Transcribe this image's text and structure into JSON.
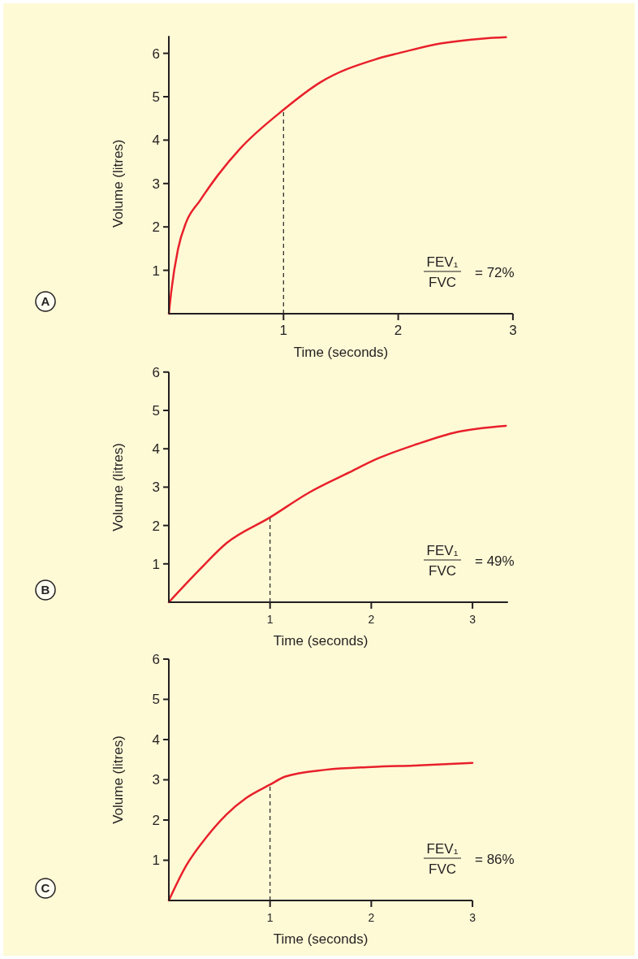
{
  "chart_data": [
    {
      "type": "line",
      "xlabel": "Time (seconds)",
      "ylabel": "Volume (litres)",
      "xlim": [
        0,
        3
      ],
      "ylim": [
        0,
        6.4
      ],
      "xticks": [
        1,
        2,
        3
      ],
      "yticks": [
        1,
        2,
        3,
        4,
        5,
        6
      ],
      "grid": false,
      "line_style": "solid",
      "series": [
        {
          "color": "#e8202a",
          "x": [
            0,
            0.02,
            0.08,
            0.15,
            0.27,
            0.43,
            0.62,
            1.0,
            1.32,
            1.8,
            2.0,
            2.38,
            2.74,
            2.94
          ],
          "values": [
            0,
            0.49,
            1.49,
            2.1,
            2.6,
            3.2,
            3.8,
            4.7,
            5.33,
            5.86,
            6.0,
            6.23,
            6.34,
            6.37
          ]
        }
      ],
      "ref_lines": [
        {
          "axis": "x",
          "value": 1,
          "line_style": "dashed",
          "color": "#231f20"
        }
      ],
      "annotations": [
        "FEV₁",
        "FVC",
        "= 72%",
        "A"
      ]
    },
    {
      "type": "line",
      "xlabel": "Time (seconds)",
      "ylabel": "Volume (litres)",
      "xlim": [
        0,
        3.35
      ],
      "ylim": [
        0,
        6
      ],
      "xticks": [
        1,
        2,
        3
      ],
      "yticks": [
        1,
        2,
        3,
        4,
        5,
        6
      ],
      "grid": false,
      "line_style": "solid",
      "series": [
        {
          "color": "#e8202a",
          "x": [
            0,
            0.3,
            0.57,
            1.0,
            1.38,
            1.78,
            2.05,
            2.45,
            2.85,
            3.33
          ],
          "values": [
            0,
            0.84,
            1.54,
            2.21,
            2.85,
            3.38,
            3.73,
            4.12,
            4.44,
            4.6
          ]
        }
      ],
      "ref_lines": [
        {
          "axis": "x",
          "value": 1,
          "line_style": "dashed",
          "color": "#231f20"
        }
      ],
      "annotations": [
        "FEV₁",
        "FVC",
        "= 49%",
        "B"
      ]
    },
    {
      "type": "line",
      "xlabel": "Time (seconds)",
      "ylabel": "Volume (litres)",
      "xlim": [
        0,
        3
      ],
      "ylim": [
        0,
        6
      ],
      "xticks": [
        1,
        2,
        3
      ],
      "yticks": [
        1,
        2,
        3,
        4,
        5,
        6
      ],
      "grid": false,
      "line_style": "solid",
      "series": [
        {
          "color": "#e8202a",
          "x": [
            0,
            0.17,
            0.38,
            0.57,
            0.76,
            1.0,
            1.15,
            1.55,
            2.0,
            2.47,
            3.0
          ],
          "values": [
            0,
            0.86,
            1.6,
            2.14,
            2.54,
            2.88,
            3.08,
            3.25,
            3.32,
            3.36,
            3.42
          ]
        }
      ],
      "ref_lines": [
        {
          "axis": "x",
          "value": 1,
          "line_style": "dashed",
          "color": "#231f20"
        }
      ],
      "annotations": [
        "FEV₁",
        "FVC",
        "= 86%",
        "C"
      ]
    }
  ]
}
